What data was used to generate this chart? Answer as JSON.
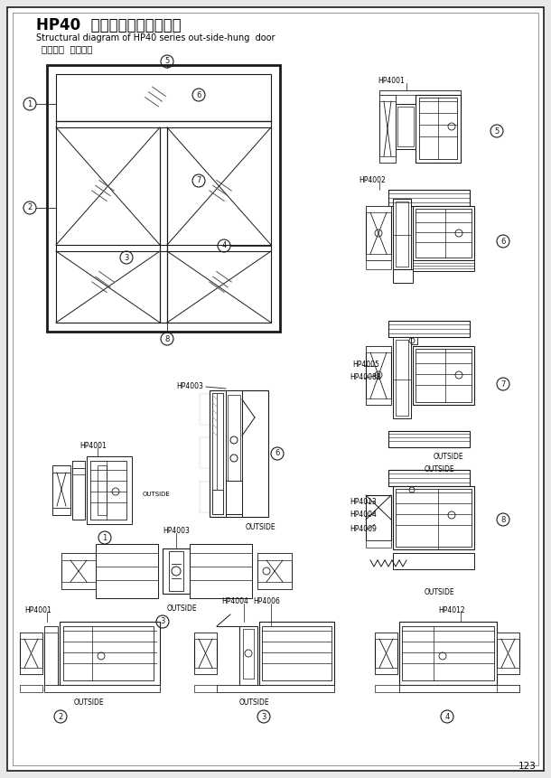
{
  "title": "HP40  系列外开平开门结构图",
  "subtitle1": "Structural diagram of HP40 series out-side-hung  door",
  "subtitle2": "以人为本  追求卓越",
  "page_num": "123",
  "bg_color": "#e8e8e8",
  "paper_color": "#ffffff",
  "line_color": "#1a1a1a",
  "gray_color": "#888888"
}
